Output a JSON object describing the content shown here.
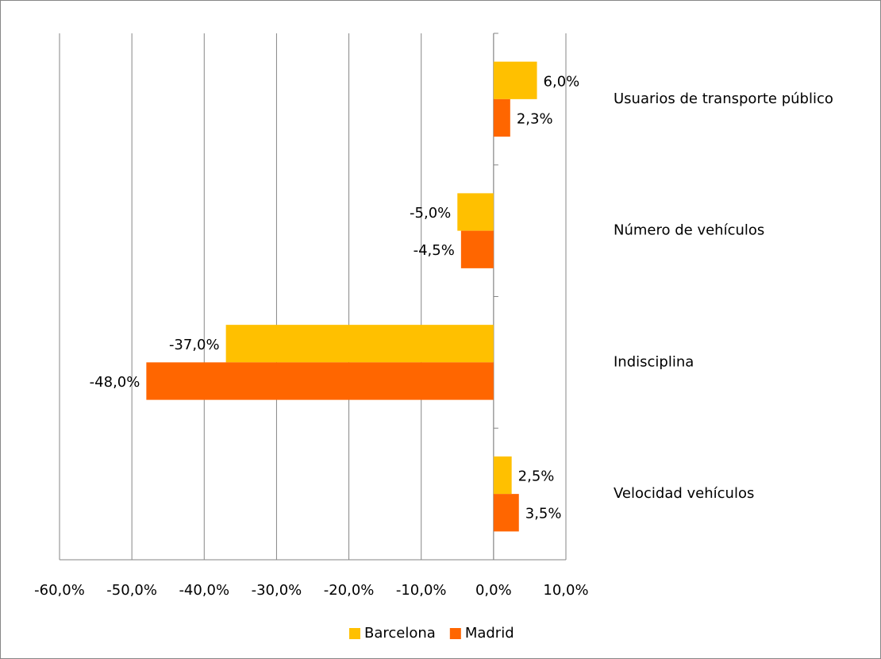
{
  "chart_data": {
    "type": "hbar",
    "categories": [
      "Usuarios de transporte público",
      "Número de vehículos",
      "Indisciplina",
      "Velocidad vehículos"
    ],
    "series": [
      {
        "name": "Barcelona",
        "color": "#ffc000",
        "values": [
          6.0,
          -5.0,
          -37.0,
          2.5
        ],
        "value_labels": [
          "6,0%",
          "-5,0%",
          "-37,0%",
          "2,5%"
        ]
      },
      {
        "name": "Madrid",
        "color": "#ff6600",
        "values": [
          2.3,
          -4.5,
          -48.0,
          3.5
        ],
        "value_labels": [
          "2,3%",
          "-4,5%",
          "-48,0%",
          "3,5%"
        ]
      }
    ],
    "xlim": [
      -60,
      10
    ],
    "xticks": [
      {
        "value": -60,
        "label": "-60,0%"
      },
      {
        "value": -50,
        "label": "-50,0%"
      },
      {
        "value": -40,
        "label": "-40,0%"
      },
      {
        "value": -30,
        "label": "-30,0%"
      },
      {
        "value": -20,
        "label": "-20,0%"
      },
      {
        "value": -10,
        "label": "-10,0%"
      },
      {
        "value": 0,
        "label": "0,0%"
      },
      {
        "value": 10,
        "label": "10,0%"
      }
    ],
    "grid": true,
    "legend": "bottom"
  }
}
